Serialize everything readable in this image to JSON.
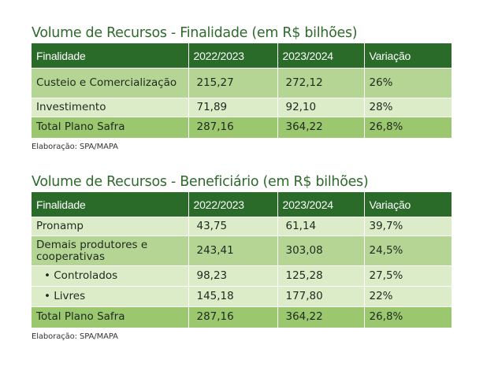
{
  "table1": {
    "title": "Volume de Recursos - Finalidade (em R$ bilhões)",
    "headers": [
      "Finalidade",
      "2022/2023",
      "2023/2024",
      "Variação"
    ],
    "rows": [
      {
        "label": "Custeio e Comercialização",
        "v2022": "215,27",
        "v2023": "272,12",
        "var": "26%"
      },
      {
        "label": "Investimento",
        "v2022": "71,89",
        "v2023": "92,10",
        "var": "28%"
      },
      {
        "label": "Total Plano Safra",
        "v2022": "287,16",
        "v2023": "364,22",
        "var": "26,8%"
      }
    ],
    "note": "Elaboração: SPA/MAPA"
  },
  "table2": {
    "title": "Volume de Recursos - Beneficiário (em R$ bilhões)",
    "headers": [
      "Finalidade",
      "2022/2023",
      "2023/2024",
      "Variação"
    ],
    "rows": [
      {
        "label": "Pronamp",
        "v2022": "43,75",
        "v2023": "61,14",
        "var": "39,7%"
      },
      {
        "label": "Demais produtores e cooperativas",
        "v2022": "243,41",
        "v2023": "303,08",
        "var": "24,5%"
      },
      {
        "label": "• Controlados",
        "v2022": "98,23",
        "v2023": "125,28",
        "var": "27,5%"
      },
      {
        "label": "• Livres",
        "v2022": "145,18",
        "v2023": "177,80",
        "var": "22%"
      },
      {
        "label": "Total Plano Safra",
        "v2022": "287,16",
        "v2023": "364,22",
        "var": "26,8%"
      }
    ],
    "note": "Elaboração: SPA/MAPA"
  },
  "colors": {
    "title": "#2f6a2c",
    "header_bg": "#2a6b2a",
    "row_dark": "#b5d594",
    "row_light": "#dcebc8",
    "row_total": "#9bc76f"
  }
}
